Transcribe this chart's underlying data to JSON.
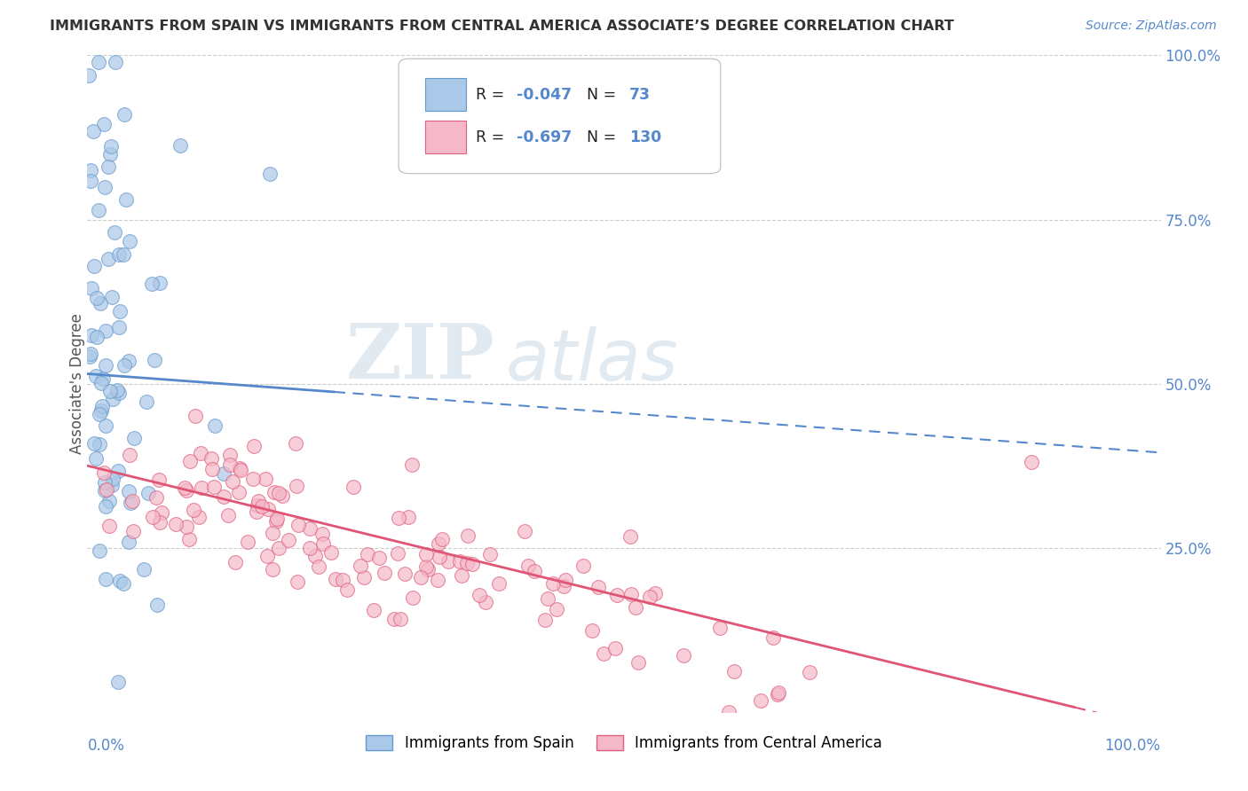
{
  "title": "IMMIGRANTS FROM SPAIN VS IMMIGRANTS FROM CENTRAL AMERICA ASSOCIATE’S DEGREE CORRELATION CHART",
  "source_text": "Source: ZipAtlas.com",
  "ylabel": "Associate's Degree",
  "blue_R": -0.047,
  "blue_N": 73,
  "pink_R": -0.697,
  "pink_N": 130,
  "background_color": "#ffffff",
  "grid_color": "#cccccc",
  "blue_scatter_color": "#aac8e8",
  "blue_edge_color": "#6699cc",
  "pink_scatter_color": "#f5b8c8",
  "pink_edge_color": "#e06080",
  "blue_line_color": "#5588cc",
  "pink_line_color": "#e05575",
  "axis_label_color": "#5588cc",
  "title_color": "#333333",
  "legend_label_blue": "Immigrants from Spain",
  "legend_label_pink": "Immigrants from Central America",
  "watermark_zip_color": "#c8d8e8",
  "watermark_atlas_color": "#b8c8d8"
}
